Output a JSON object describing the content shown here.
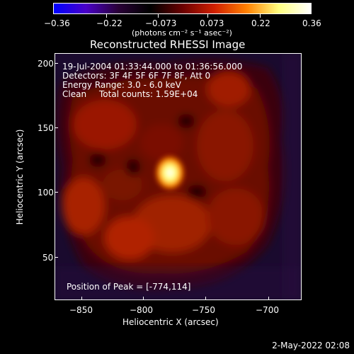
{
  "colorbar": {
    "unit": "(photons cm⁻² s⁻¹ asec⁻²)",
    "ticks": [
      "−0.36",
      "−0.22",
      "−0.073",
      "0.073",
      "0.22",
      "0.36"
    ],
    "stops": [
      "#0000ff",
      "#4a00c8",
      "#2a0038",
      "#000000",
      "#6a0000",
      "#d02000",
      "#ff8000",
      "#ffff80",
      "#ffffff"
    ]
  },
  "header": {
    "title": "Reconstructed RHESSI Image"
  },
  "annotations": {
    "time_range": "19-Jul-2004 01:33:44.000 to 01:36:56.000",
    "detectors": "Detectors: 3F 4F 5F 6F 7F 8F, Att 0",
    "energy_range": "Energy Range: 3.0 - 6.0 keV",
    "clean_label": "Clean",
    "total_counts": "Total counts: 1.59E+04",
    "peak": "Position of Peak = [-774,114]"
  },
  "axes": {
    "x_label": "Heliocentric X (arcsec)",
    "y_label": "Heliocentric Y (arcsec)",
    "x_ticks": [
      "−850",
      "−800",
      "−750",
      "−700"
    ],
    "y_ticks": [
      "200",
      "150",
      "100",
      "50"
    ]
  },
  "footer": {
    "timestamp": "2-May-2022 02:08"
  }
}
